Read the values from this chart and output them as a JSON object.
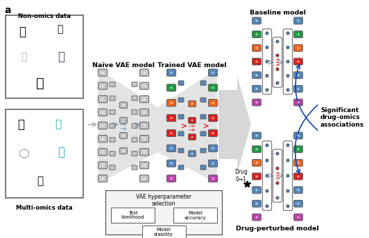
{
  "title_label": "a",
  "non_omics_label": "Non-omics data",
  "multi_omics_label": "Multi-omics data",
  "naive_vae_label": "Naïve VAE model",
  "trained_vae_label": "Trained VAE model",
  "baseline_model_label": "Baseline model",
  "drug_perturbed_label": "Drug-perturbed model",
  "sig_assoc_label": "Significant\ndrug–omics\nassociations",
  "drug_label": "Drug\n0→1",
  "vae_box_title": "VAE hyperparameter\nselection",
  "vae_box_items": [
    "Test\nlikelihood",
    "Model\naccuracy",
    "Model\nstability"
  ],
  "bg_color": "#ffffff",
  "gray_node": "#c8c8c8",
  "blue_c": "#5588bb",
  "arrow_blue": "#6688aa",
  "arrow_red": "#cc2222",
  "curved_arrow_color": "#1144aa",
  "funnel_color": "#d4d4d4",
  "big_arrow_color": "#d0d0d0",
  "node_colors_input": [
    "#5588bb",
    "#5588bb",
    "#5588bb",
    "#5588bb",
    "#5588bb",
    "#5588bb",
    "#5588bb"
  ],
  "trained_outer": [
    "#5588bb",
    "#229944",
    "#ee6622",
    "#dd2222",
    "#dd2222",
    "#5588bb",
    "#5588bb",
    "#bb44aa"
  ],
  "trained_latent": [
    "#ee6622",
    "#dd2222",
    "#dd2222",
    "#5588bb"
  ],
  "trained_out": [
    "#5588bb",
    "#229944",
    "#ee6622",
    "#dd2222",
    "#dd2222",
    "#5588bb",
    "#5588bb",
    "#bb44aa"
  ],
  "bm_outer": [
    "#5588bb",
    "#229944",
    "#ee6622",
    "#dd2222",
    "#5588bb",
    "#5588bb",
    "#bb44aa"
  ],
  "bm_latent": [
    "#5588bb",
    "#dd2222",
    "#dd2222",
    "#5588bb"
  ],
  "dp_outer": [
    "#5588bb",
    "#229944",
    "#ee6622",
    "#dd2222",
    "#5588bb",
    "#5588bb",
    "#bb44aa"
  ],
  "dp_latent": [
    "#5588bb",
    "#dd2222",
    "#dd2222",
    "#5588bb"
  ]
}
